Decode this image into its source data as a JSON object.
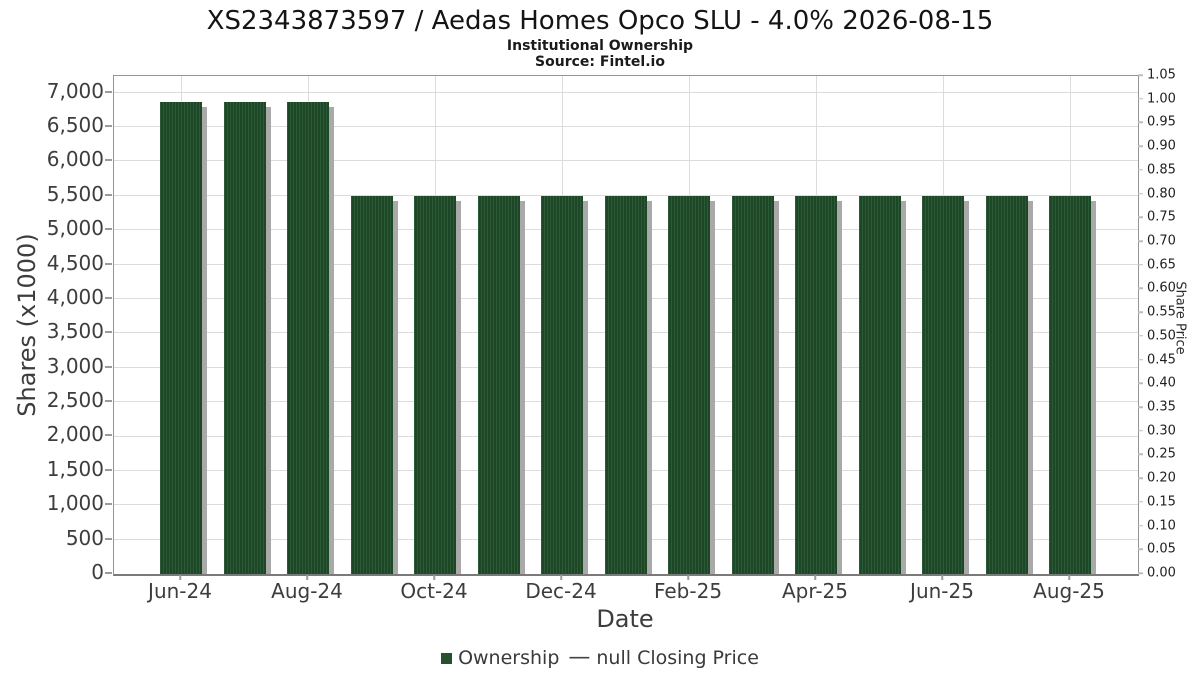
{
  "header": {
    "title": "XS2343873597 / Aedas Homes Opco SLU - 4.0% 2026-08-15",
    "subtitle": "Institutional Ownership",
    "source": "Source: Fintel.io"
  },
  "axes": {
    "left": {
      "title": "Shares (x1000)",
      "tick_values": [
        0,
        500,
        1000,
        1500,
        2000,
        2500,
        3000,
        3500,
        4000,
        4500,
        5000,
        5500,
        6000,
        6500,
        7000
      ],
      "tick_labels": [
        "0",
        "500",
        "1,000",
        "1,500",
        "2,000",
        "2,500",
        "3,000",
        "3,500",
        "4,000",
        "4,500",
        "5,000",
        "5,500",
        "6,000",
        "6,500",
        "7,000"
      ]
    },
    "right": {
      "title": "Share Price",
      "tick_values": [
        0,
        0.05,
        0.1,
        0.15,
        0.2,
        0.25,
        0.3,
        0.35,
        0.4,
        0.45,
        0.5,
        0.55,
        0.6,
        0.65,
        0.7,
        0.75,
        0.8,
        0.85,
        0.9,
        0.95,
        1.0,
        1.05
      ],
      "tick_labels": [
        "0.00",
        "0.05",
        "0.10",
        "0.15",
        "0.20",
        "0.25",
        "0.30",
        "0.35",
        "0.40",
        "0.45",
        "0.50",
        "0.55",
        "0.60",
        "0.65",
        "0.70",
        "0.75",
        "0.80",
        "0.85",
        "0.90",
        "0.95",
        "1.00",
        "1.05"
      ]
    },
    "x": {
      "title": "Date",
      "tick_labels": [
        "Jun-24",
        "Aug-24",
        "Oct-24",
        "Dec-24",
        "Feb-25",
        "Apr-25",
        "Jun-25",
        "Aug-25"
      ]
    }
  },
  "legend": {
    "items": [
      {
        "marker": "square",
        "label": "Ownership"
      },
      {
        "marker": "dash",
        "glyph": "—",
        "label": "null Closing Price"
      }
    ]
  },
  "colors": {
    "bar_fill": "#1d4726",
    "bar_stripe": "#2b5a36",
    "bar_shadow": "#a9a9a9",
    "legend_marker": "#26512f",
    "grid": "#dcdcdc",
    "frame": "#949494",
    "title_text": "#141414",
    "axis_text": "#3d3d3d"
  },
  "chart_data": {
    "type": "bar",
    "title": "XS2343873597 / Aedas Homes Opco SLU - 4.0% 2026-08-15",
    "subtitle": "Institutional Ownership",
    "xlabel": "Date",
    "ylabel": "Shares (x1000)",
    "y2label": "Share Price",
    "ylim": [
      0,
      7243
    ],
    "y2lim": [
      0,
      1.05
    ],
    "grid": true,
    "legend_position": "bottom",
    "categories": [
      "Jun-24",
      "Jul-24",
      "Aug-24",
      "Sep-24",
      "Oct-24",
      "Nov-24",
      "Dec-24",
      "Jan-25",
      "Feb-25",
      "Mar-25",
      "Apr-25",
      "May-25",
      "Jun-25",
      "Jul-25",
      "Aug-25"
    ],
    "x_shown_tick_indices": [
      0,
      2,
      4,
      6,
      8,
      10,
      12,
      14
    ],
    "series": [
      {
        "name": "Ownership",
        "type": "bar",
        "values": [
          6870,
          6870,
          6870,
          5500,
          5500,
          5500,
          5500,
          5500,
          5500,
          5500,
          5500,
          5500,
          5500,
          5500,
          5500
        ]
      },
      {
        "name": "null Closing Price",
        "type": "line",
        "values": []
      }
    ]
  }
}
